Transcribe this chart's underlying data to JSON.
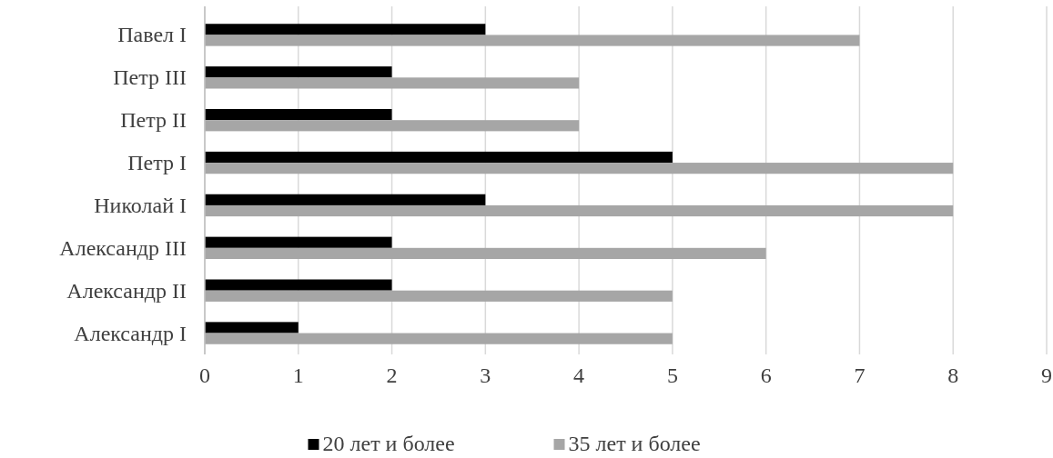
{
  "chart_data": {
    "type": "bar",
    "orientation": "horizontal",
    "categories": [
      "Павел I",
      "Петр III",
      "Петр II",
      "Петр I",
      "Николай I",
      "Александр III",
      "Александр II",
      "Александр I"
    ],
    "series": [
      {
        "name": "20 лет и более",
        "color": "#000000",
        "values": [
          3,
          2,
          2,
          5,
          3,
          2,
          2,
          1
        ]
      },
      {
        "name": "35 лет и более",
        "color": "#a6a6a6",
        "values": [
          7,
          4,
          4,
          8,
          8,
          6,
          5,
          5
        ]
      }
    ],
    "xlim": [
      0,
      9
    ],
    "xticks": [
      0,
      1,
      2,
      3,
      4,
      5,
      6,
      7,
      8,
      9
    ],
    "grid": "x",
    "legend": "bottom"
  }
}
